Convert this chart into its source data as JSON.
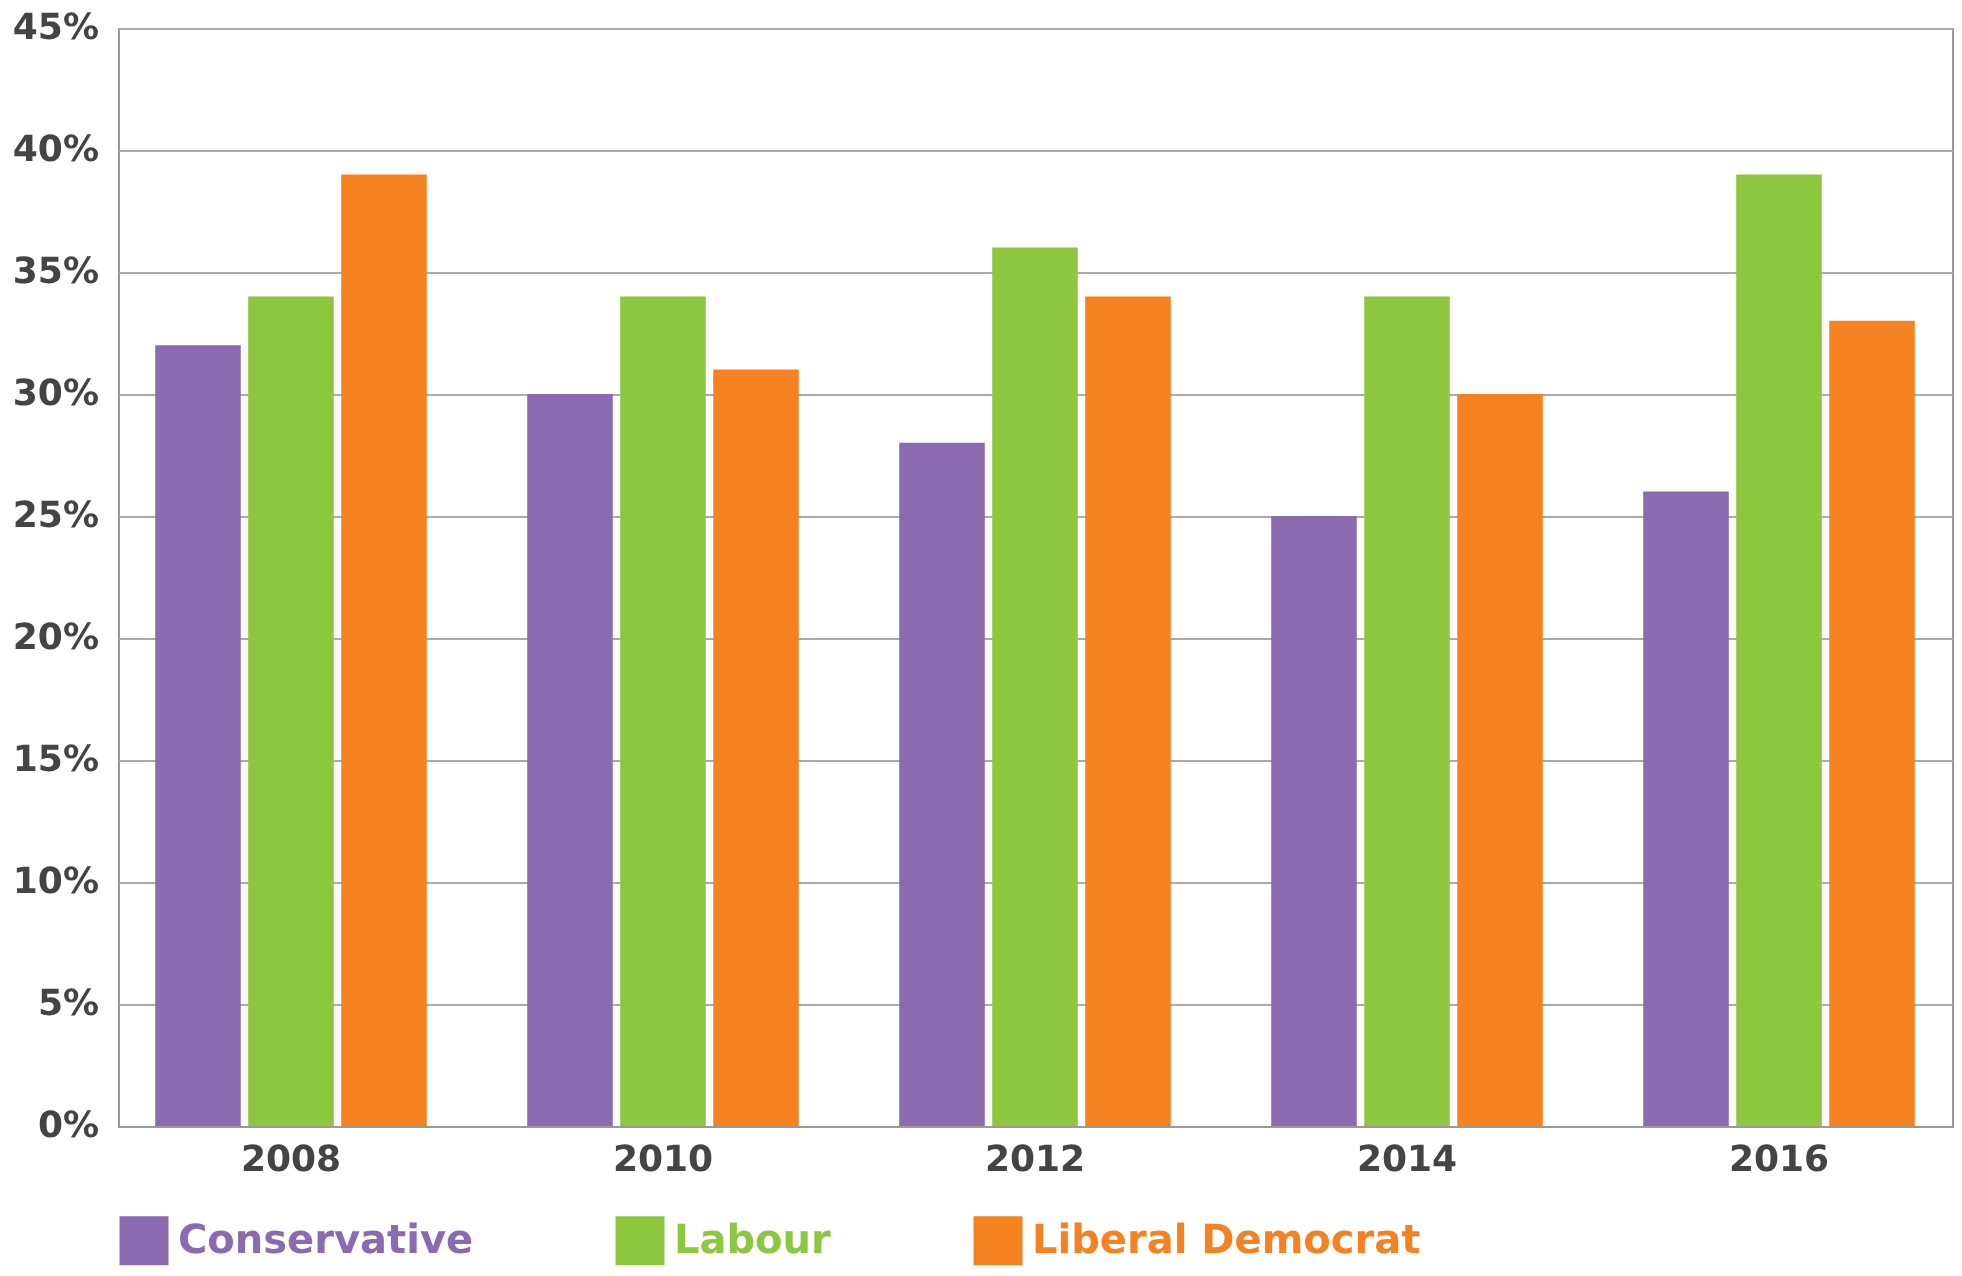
{
  "chart_data": {
    "type": "bar",
    "categories": [
      "2008",
      "2010",
      "2012",
      "2014",
      "2016"
    ],
    "series": [
      {
        "name": "Conservative",
        "color": "#8a6bb0",
        "values": [
          32,
          30,
          28,
          25,
          26
        ]
      },
      {
        "name": "Labour",
        "color": "#8dc63f",
        "values": [
          34,
          34,
          36,
          34,
          39
        ]
      },
      {
        "name": "Liberal Democrat",
        "color": "#f58220",
        "values": [
          39,
          31,
          34,
          30,
          33
        ]
      }
    ],
    "ylim": [
      0,
      45
    ],
    "yticks": [
      {
        "value": 0,
        "label": "0%"
      },
      {
        "value": 5,
        "label": "5%"
      },
      {
        "value": 10,
        "label": "10%"
      },
      {
        "value": 15,
        "label": "15%"
      },
      {
        "value": 20,
        "label": "20%"
      },
      {
        "value": 25,
        "label": "25%"
      },
      {
        "value": 30,
        "label": "30%"
      },
      {
        "value": 35,
        "label": "35%"
      },
      {
        "value": 40,
        "label": "40%"
      },
      {
        "value": 45,
        "label": "45%"
      }
    ],
    "grid": "y",
    "legend": "bottom"
  }
}
